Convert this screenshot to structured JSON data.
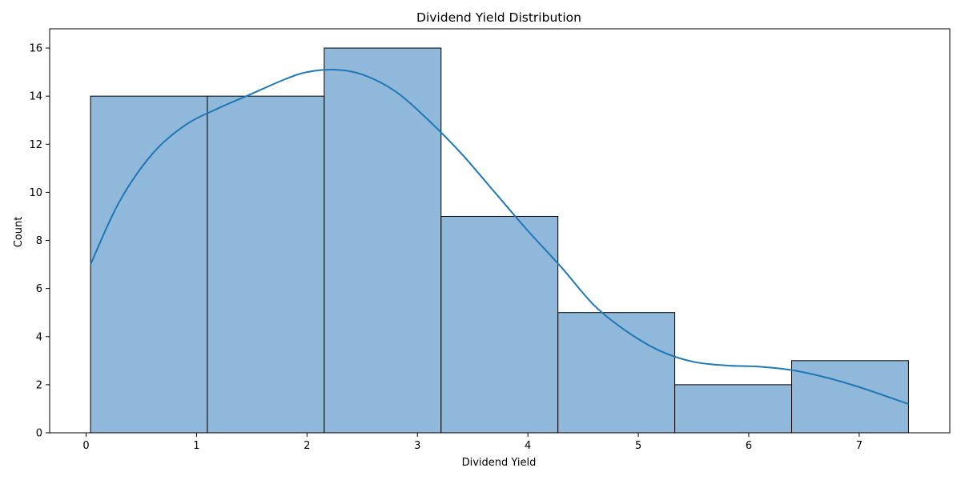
{
  "chart_data": {
    "type": "bar",
    "subtype": "histogram",
    "title": "Dividend Yield Distribution",
    "xlabel": "Dividend Yield",
    "ylabel": "Count",
    "bin_edges": [
      0.04,
      1.098,
      2.156,
      3.214,
      4.272,
      5.33,
      6.388,
      7.446
    ],
    "counts": [
      14,
      14,
      16,
      9,
      5,
      2,
      3
    ],
    "kde": {
      "x": [
        0.04,
        0.3,
        0.6,
        0.9,
        1.2,
        1.5,
        1.8,
        2.0,
        2.25,
        2.5,
        2.8,
        3.1,
        3.4,
        3.7,
        4.0,
        4.3,
        4.6,
        4.9,
        5.2,
        5.5,
        5.8,
        6.1,
        6.4,
        6.7,
        7.0,
        7.446
      ],
      "y": [
        7.0,
        9.6,
        11.6,
        12.8,
        13.5,
        14.1,
        14.7,
        15.0,
        15.1,
        14.9,
        14.2,
        13.0,
        11.6,
        10.0,
        8.4,
        6.9,
        5.3,
        4.2,
        3.4,
        2.95,
        2.8,
        2.75,
        2.6,
        2.3,
        1.9,
        1.2
      ]
    },
    "xlim": [
      -0.33,
      7.82
    ],
    "ylim": [
      0,
      16.8
    ],
    "xticks": [
      0,
      1,
      2,
      3,
      4,
      5,
      6,
      7
    ],
    "yticks": [
      0,
      2,
      4,
      6,
      8,
      10,
      12,
      14,
      16
    ],
    "bar_color": "#8fb8da",
    "bar_edge_color": "#000000",
    "line_color": "#1f77b4",
    "grid": false
  }
}
